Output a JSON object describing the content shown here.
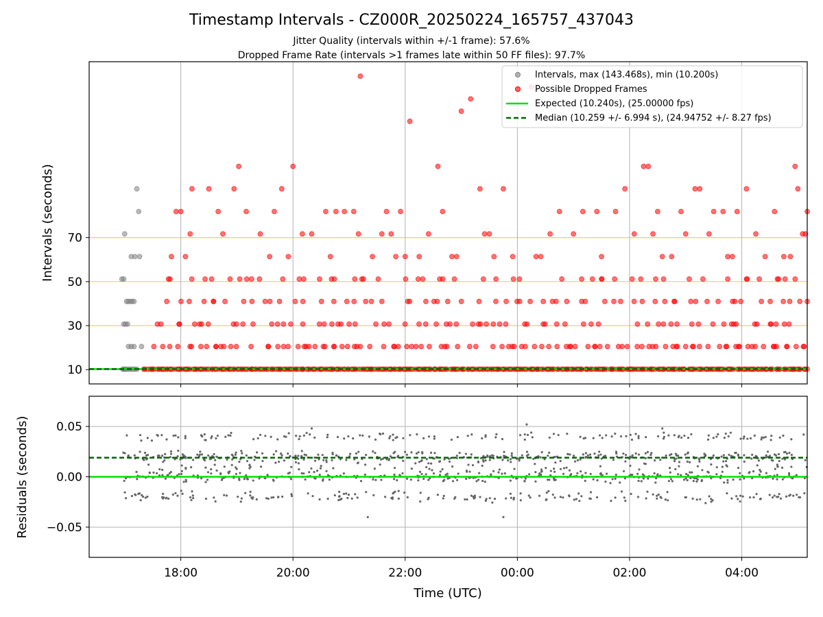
{
  "title": "Timestamp Intervals - CZ000R_20250224_165757_437043",
  "subtitle_line1": "Jitter Quality (intervals within +/-1 frame): 57.6%",
  "subtitle_line2": "Dropped Frame Rate (intervals >1 frames late within 50 FF files): 97.7%",
  "colors": {
    "intervals": "#808080",
    "dropped": "#ff0000",
    "expected": "#00e000",
    "median": "#006400",
    "reference_lines": "#ffa500",
    "grid": "#b0b0b0",
    "residuals": "#666666"
  },
  "chart_data": [
    {
      "type": "scatter",
      "panel": "top",
      "ylabel": "Intervals (seconds)",
      "xlabel": "",
      "yticks": [
        10,
        30,
        50,
        70
      ],
      "ylim": [
        3.5,
        150
      ],
      "xlim": [
        "16:22",
        "05:10"
      ],
      "xticks": [
        "18:00",
        "20:00",
        "22:00",
        "00:00",
        "02:00",
        "04:00"
      ],
      "grid": "vertical",
      "legend_position": "top-right",
      "reference_lines": [
        30,
        50,
        70
      ],
      "legend": {
        "intervals": "Intervals, max (143.468s), min (10.200s)",
        "dropped": "Possible Dropped Frames",
        "expected": "Expected (10.240s), (25.00000 fps)",
        "median": "Median (10.259 +/- 6.994 s), (24.94752 +/- 8.27 fps)"
      },
      "expected_value": 10.24,
      "median_value": 10.259,
      "series": [
        {
          "name": "Intervals, max (143.468s), min (10.200s)",
          "points": [
            [
              "16:58",
              10.2
            ],
            [
              "16:59",
              10.2
            ],
            [
              "17:00",
              10.2
            ],
            [
              "17:01",
              10.2
            ],
            [
              "17:03",
              10.2
            ],
            [
              "17:05",
              10.2
            ],
            [
              "17:07",
              10.2
            ],
            [
              "17:09",
              10.2
            ],
            [
              "17:11",
              10.2
            ],
            [
              "17:13",
              10.2
            ],
            [
              "16:59",
              30.7
            ],
            [
              "17:01",
              30.7
            ],
            [
              "17:03",
              30.7
            ],
            [
              "17:02",
              41.0
            ],
            [
              "17:04",
              41.0
            ],
            [
              "17:06",
              41.0
            ],
            [
              "17:08",
              41.0
            ],
            [
              "17:10",
              41.0
            ],
            [
              "16:57",
              51.2
            ],
            [
              "16:59",
              51.2
            ],
            [
              "17:04",
              20.5
            ],
            [
              "17:07",
              20.5
            ],
            [
              "17:10",
              20.5
            ],
            [
              "17:18",
              20.5
            ],
            [
              "17:00",
              71.7
            ],
            [
              "17:07",
              61.4
            ],
            [
              "17:11",
              61.4
            ],
            [
              "17:16",
              61.4
            ],
            [
              "17:15",
              81.9
            ],
            [
              "17:13",
              92.2
            ]
          ]
        },
        {
          "name": "Possible Dropped Frames",
          "dense_rows": [
            {
              "y": 10.2,
              "from": "17:20",
              "to": "05:10",
              "step_min": 2
            },
            {
              "y": 20.5,
              "from": "17:30",
              "to": "05:10",
              "step_min": 5
            },
            {
              "y": 30.7,
              "from": "17:35",
              "to": "05:10",
              "step_min": 7
            },
            {
              "y": 41.0,
              "from": "17:45",
              "to": "05:10",
              "step_min": 9
            },
            {
              "y": 51.2,
              "from": "17:30",
              "to": "05:10",
              "step_min": 11
            }
          ],
          "points": [
            [
              "17:50",
              61.4
            ],
            [
              "17:55",
              81.9
            ],
            [
              "18:00",
              81.9
            ],
            [
              "18:05",
              61.4
            ],
            [
              "18:10",
              71.7
            ],
            [
              "18:12",
              92.2
            ],
            [
              "18:30",
              92.2
            ],
            [
              "18:40",
              81.9
            ],
            [
              "18:45",
              71.7
            ],
            [
              "18:57",
              92.2
            ],
            [
              "19:02",
              102.4
            ],
            [
              "19:10",
              81.9
            ],
            [
              "19:25",
              71.7
            ],
            [
              "19:35",
              61.4
            ],
            [
              "19:40",
              81.9
            ],
            [
              "19:48",
              92.2
            ],
            [
              "19:55",
              61.4
            ],
            [
              "20:00",
              102.4
            ],
            [
              "20:10",
              71.7
            ],
            [
              "20:20",
              71.7
            ],
            [
              "20:35",
              81.9
            ],
            [
              "20:40",
              61.4
            ],
            [
              "20:46",
              81.9
            ],
            [
              "20:55",
              81.9
            ],
            [
              "21:05",
              81.9
            ],
            [
              "21:10",
              71.7
            ],
            [
              "21:12",
              143.4
            ],
            [
              "21:25",
              61.4
            ],
            [
              "21:35",
              71.7
            ],
            [
              "21:40",
              81.9
            ],
            [
              "21:45",
              71.7
            ],
            [
              "21:50",
              61.4
            ],
            [
              "21:55",
              81.9
            ],
            [
              "22:00",
              61.4
            ],
            [
              "22:05",
              122.9
            ],
            [
              "22:15",
              61.4
            ],
            [
              "22:25",
              71.7
            ],
            [
              "22:35",
              102.4
            ],
            [
              "22:40",
              81.9
            ],
            [
              "22:50",
              61.4
            ],
            [
              "22:55",
              61.4
            ],
            [
              "23:00",
              127.5
            ],
            [
              "23:10",
              133.1
            ],
            [
              "23:20",
              92.2
            ],
            [
              "23:25",
              71.7
            ],
            [
              "23:30",
              71.7
            ],
            [
              "23:35",
              61.4
            ],
            [
              "23:45",
              92.2
            ],
            [
              "23:55",
              61.4
            ],
            [
              "00:15",
              138.5
            ],
            [
              "00:20",
              61.4
            ],
            [
              "00:25",
              61.4
            ],
            [
              "00:35",
              71.7
            ],
            [
              "00:45",
              81.9
            ],
            [
              "01:00",
              71.7
            ],
            [
              "01:10",
              81.9
            ],
            [
              "01:25",
              81.9
            ],
            [
              "01:30",
              61.4
            ],
            [
              "01:45",
              81.9
            ],
            [
              "01:55",
              92.2
            ],
            [
              "02:05",
              71.7
            ],
            [
              "02:15",
              102.4
            ],
            [
              "02:20",
              102.4
            ],
            [
              "02:25",
              71.7
            ],
            [
              "02:30",
              81.9
            ],
            [
              "02:35",
              61.4
            ],
            [
              "02:45",
              61.4
            ],
            [
              "02:55",
              81.9
            ],
            [
              "03:00",
              71.7
            ],
            [
              "03:10",
              92.2
            ],
            [
              "03:15",
              92.2
            ],
            [
              "03:25",
              71.7
            ],
            [
              "03:30",
              81.9
            ],
            [
              "03:40",
              81.9
            ],
            [
              "03:45",
              61.4
            ],
            [
              "03:50",
              61.4
            ],
            [
              "03:55",
              81.9
            ],
            [
              "04:05",
              92.2
            ],
            [
              "04:15",
              71.7
            ],
            [
              "04:25",
              61.4
            ],
            [
              "04:35",
              81.9
            ],
            [
              "04:45",
              61.4
            ],
            [
              "04:52",
              61.4
            ],
            [
              "04:57",
              102.4
            ],
            [
              "05:00",
              92.2
            ],
            [
              "05:05",
              71.7
            ],
            [
              "05:08",
              71.7
            ],
            [
              "05:10",
              81.9
            ]
          ]
        },
        {
          "name": "Expected (10.240s), (25.00000 fps)",
          "y": 10.24
        },
        {
          "name": "Median (10.259 +/- 6.994 s), (24.94752 +/- 8.27 fps)",
          "y": 10.259
        }
      ]
    },
    {
      "type": "scatter",
      "panel": "bottom",
      "xlabel": "Time (UTC)",
      "ylabel": "Residuals (seconds)",
      "ylim": [
        -0.08,
        0.08
      ],
      "yticks": [
        "0.05",
        "0.00",
        "−0.05"
      ],
      "ytick_values": [
        0.05,
        0.0,
        -0.05
      ],
      "xlim": [
        "16:22",
        "05:10"
      ],
      "xticks": [
        "18:00",
        "20:00",
        "22:00",
        "00:00",
        "02:00",
        "04:00"
      ],
      "grid": "both",
      "expected_line": 0.0,
      "median_line": 0.019,
      "series": [
        {
          "name": "residuals",
          "clusters": [
            {
              "center": -0.02,
              "spread": 0.004,
              "weight": 0.18
            },
            {
              "center": 0.0,
              "spread": 0.004,
              "weight": 0.3
            },
            {
              "center": 0.02,
              "spread": 0.004,
              "weight": 0.3
            },
            {
              "center": 0.04,
              "spread": 0.003,
              "weight": 0.12
            },
            {
              "center": 0.01,
              "spread": 0.004,
              "weight": 0.1
            }
          ],
          "from": "16:58",
          "to": "05:10",
          "count": 1100,
          "outliers": [
            [
              "21:20",
              -0.04
            ],
            [
              "23:45",
              -0.04
            ],
            [
              "00:10",
              0.052
            ],
            [
              "02:35",
              0.048
            ],
            [
              "20:20",
              0.048
            ]
          ]
        }
      ]
    }
  ]
}
